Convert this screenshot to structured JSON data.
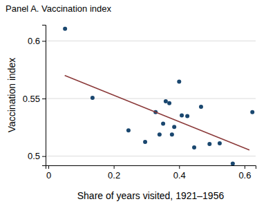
{
  "chart_data": {
    "type": "scatter",
    "title": "Panel A. Vaccination index",
    "x_label": "Share of years visited, 1921–1956",
    "y_label": "Vaccination index",
    "series": [
      {
        "type": "scatter",
        "color": "#1a476f",
        "marker": "circle",
        "x": [
          0.051,
          0.135,
          0.245,
          0.296,
          0.328,
          0.34,
          0.351,
          0.359,
          0.37,
          0.385,
          0.378,
          0.4,
          0.408,
          0.425,
          0.446,
          0.467,
          0.493,
          0.524,
          0.564,
          0.624
        ],
        "values": [
          0.6106,
          0.5506,
          0.5224,
          0.5124,
          0.5382,
          0.5188,
          0.5282,
          0.5476,
          0.5459,
          0.5253,
          0.5188,
          0.5647,
          0.5353,
          0.5347,
          0.5076,
          0.5429,
          0.5106,
          0.5112,
          0.4935,
          0.5382
        ]
      },
      {
        "type": "line",
        "color": "#8b3a3a",
        "line_style": "solid",
        "x": [
          0.05,
          0.615
        ],
        "values": [
          0.57,
          0.5053
        ]
      }
    ],
    "xlim": [
      -0.0085,
      0.634
    ],
    "ylim": [
      0.492,
      0.614
    ],
    "xticks": [
      0,
      0.2,
      0.4,
      0.6
    ],
    "yticks": [
      0.5,
      0.55,
      0.6
    ],
    "grid": true
  }
}
